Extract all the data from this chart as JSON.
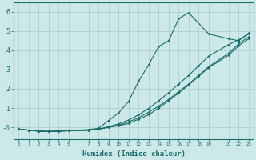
{
  "xlabel": "Humidex (Indice chaleur)",
  "bg_color": "#cce8e8",
  "grid_color": "#aacccc",
  "line_color": "#1a6b6b",
  "line1_x": [
    0,
    1,
    2,
    3,
    4,
    5,
    7,
    8,
    9,
    10,
    11,
    12,
    13,
    14,
    15,
    16,
    17,
    18,
    19,
    21,
    22,
    23
  ],
  "line1_y": [
    -0.1,
    -0.15,
    -0.2,
    -0.22,
    -0.2,
    -0.18,
    -0.15,
    -0.1,
    0.0,
    0.12,
    0.28,
    0.5,
    0.78,
    1.1,
    1.45,
    1.85,
    2.25,
    2.7,
    3.15,
    3.85,
    4.35,
    4.7
  ],
  "line2_x": [
    0,
    1,
    2,
    3,
    4,
    5,
    7,
    8,
    9,
    10,
    11,
    12,
    13,
    14,
    15,
    16,
    17,
    18,
    19,
    21,
    22,
    23
  ],
  "line2_y": [
    -0.1,
    -0.15,
    -0.2,
    -0.22,
    -0.2,
    -0.18,
    -0.15,
    -0.1,
    0.03,
    0.18,
    0.38,
    0.65,
    0.98,
    1.38,
    1.8,
    2.25,
    2.7,
    3.2,
    3.7,
    4.3,
    4.55,
    4.85
  ],
  "line3_x": [
    0,
    1,
    2,
    3,
    4,
    5,
    7,
    8,
    9,
    10,
    11,
    12,
    13,
    14,
    15,
    16,
    17,
    19,
    21,
    22,
    23
  ],
  "line3_y": [
    -0.1,
    -0.15,
    -0.2,
    -0.22,
    -0.2,
    -0.18,
    -0.12,
    -0.05,
    0.35,
    0.75,
    1.35,
    2.4,
    3.25,
    4.2,
    4.5,
    5.65,
    5.95,
    4.85,
    4.6,
    4.5,
    4.9
  ],
  "line4_x": [
    0,
    1,
    2,
    3,
    4,
    5,
    7,
    8,
    9,
    10,
    11,
    12,
    13,
    14,
    15,
    16,
    17,
    18,
    19,
    21,
    22,
    23
  ],
  "line4_y": [
    -0.1,
    -0.15,
    -0.2,
    -0.22,
    -0.2,
    -0.18,
    -0.15,
    -0.1,
    0.0,
    0.08,
    0.2,
    0.42,
    0.65,
    1.0,
    1.38,
    1.78,
    2.2,
    2.65,
    3.1,
    3.75,
    4.25,
    4.6
  ],
  "ylim": [
    -0.6,
    6.5
  ],
  "xlim": [
    -0.5,
    23.5
  ],
  "yticks": [
    0,
    1,
    2,
    3,
    4,
    5,
    6
  ],
  "ytick_labels": [
    "-0",
    "1",
    "2",
    "3",
    "4",
    "5",
    "6"
  ],
  "xtick_positions": [
    0,
    1,
    2,
    3,
    4,
    5,
    7,
    8,
    9,
    10,
    11,
    12,
    13,
    14,
    15,
    16,
    17,
    18,
    19,
    21,
    22,
    23
  ],
  "xtick_labels": [
    "0",
    "1",
    "2",
    "3",
    "4",
    "5",
    "7",
    "8",
    "9",
    "10",
    "11",
    "12",
    "13",
    "14",
    "15",
    "16",
    "17",
    "18",
    "19",
    "21",
    "22",
    "23"
  ]
}
